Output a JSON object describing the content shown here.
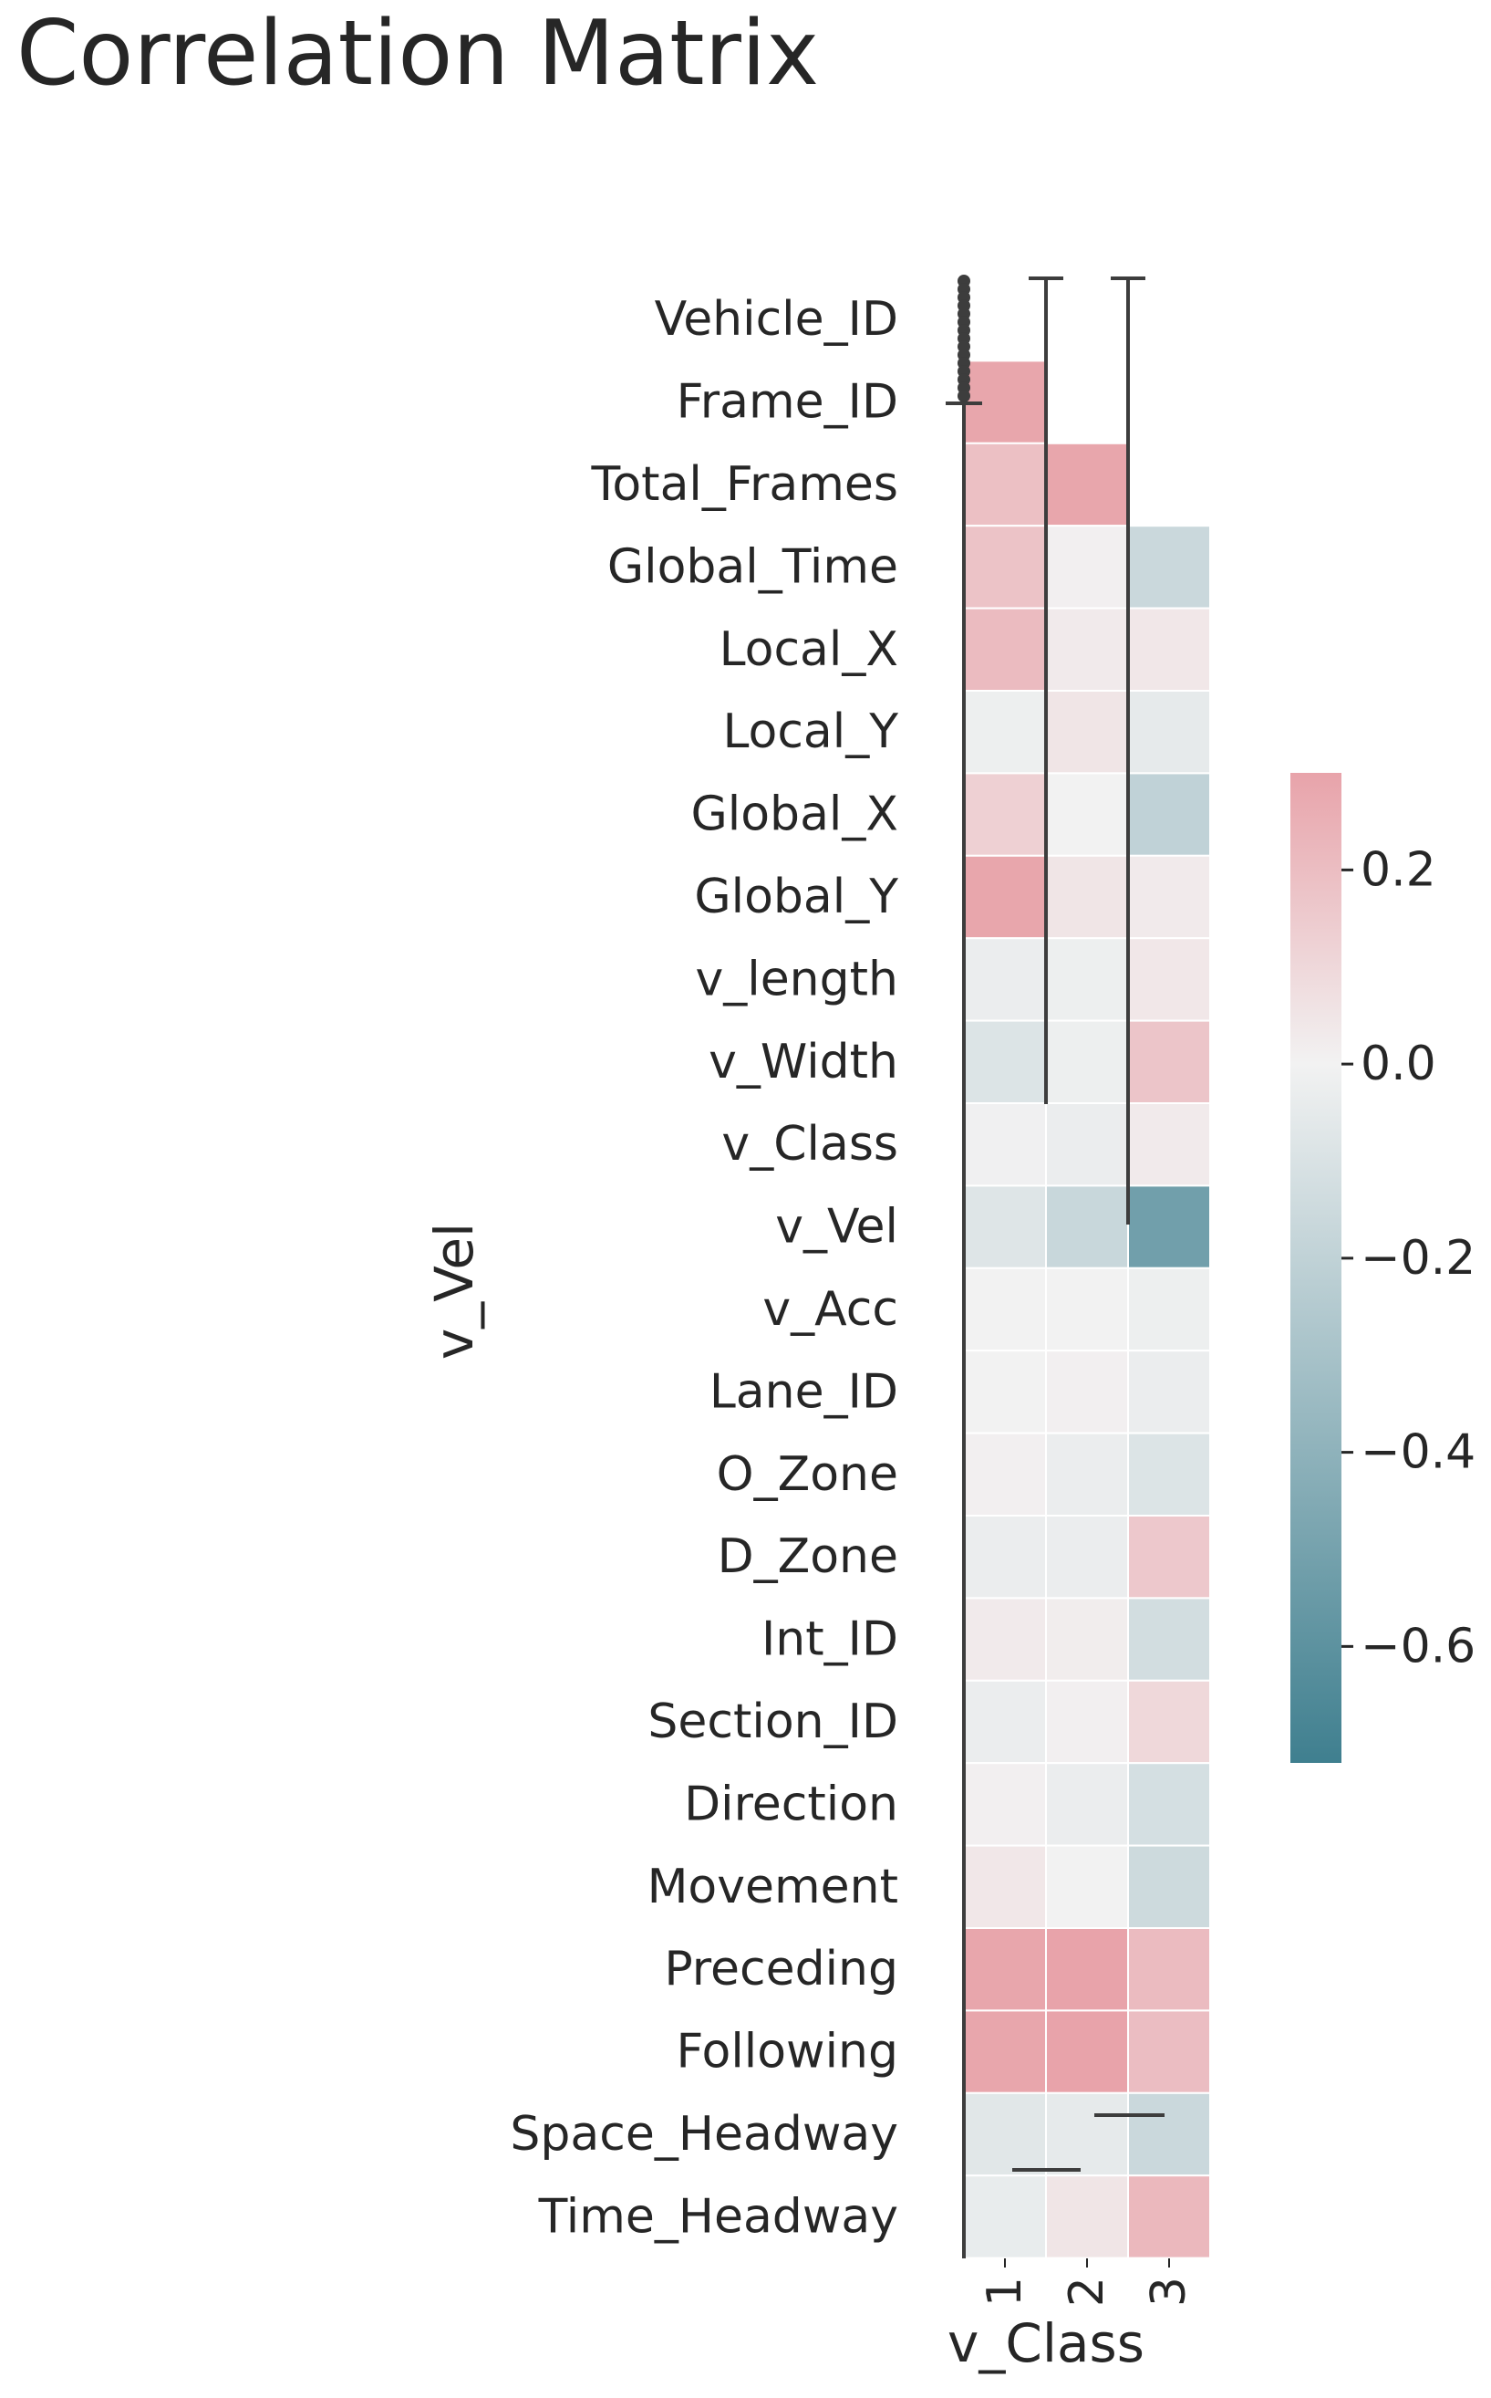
{
  "chart_data": {
    "type": "heatmap",
    "title": "Correlation Matrix",
    "xlabel": "v_Class",
    "ylabel": "v_Vel",
    "columns": [
      "1",
      "2",
      "3"
    ],
    "rows": [
      "Vehicle_ID",
      "Frame_ID",
      "Total_Frames",
      "Global_Time",
      "Local_X",
      "Local_Y",
      "Global_X",
      "Global_Y",
      "v_length",
      "v_Width",
      "v_Class",
      "v_Vel",
      "v_Acc",
      "Lane_ID",
      "O_Zone",
      "D_Zone",
      "Int_ID",
      "Section_ID",
      "Direction",
      "Movement",
      "Preceding",
      "Following",
      "Space_Headway",
      "Time_Headway"
    ],
    "values": [
      [
        null,
        null,
        null
      ],
      [
        0.29,
        null,
        null
      ],
      [
        0.19,
        0.29,
        null
      ],
      [
        0.18,
        0.01,
        -0.16
      ],
      [
        0.21,
        0.03,
        0.04
      ],
      [
        -0.02,
        0.05,
        -0.05
      ],
      [
        0.13,
        0.0,
        -0.2
      ],
      [
        0.29,
        0.05,
        0.03
      ],
      [
        -0.03,
        -0.02,
        0.04
      ],
      [
        -0.09,
        -0.02,
        0.17
      ],
      [
        -0.01,
        -0.03,
        0.03
      ],
      [
        -0.08,
        -0.17,
        -0.52
      ],
      [
        0.0,
        0.0,
        -0.02
      ],
      [
        0.0,
        0.01,
        -0.03
      ],
      [
        0.01,
        -0.03,
        -0.09
      ],
      [
        -0.03,
        -0.03,
        0.16
      ],
      [
        0.03,
        0.02,
        -0.13
      ],
      [
        -0.03,
        0.01,
        0.1
      ],
      [
        0.01,
        -0.03,
        -0.12
      ],
      [
        0.04,
        0.0,
        -0.15
      ],
      [
        0.29,
        0.3,
        0.21
      ],
      [
        0.29,
        0.3,
        0.2
      ],
      [
        -0.07,
        -0.05,
        -0.16
      ],
      [
        -0.04,
        0.05,
        0.22
      ]
    ],
    "vmin": -0.72,
    "vmax": 0.3,
    "colorbar_ticks": [
      "0.2",
      "0.0",
      "−0.2",
      "−0.4",
      "−0.6"
    ],
    "colorbar_tick_values": [
      0.2,
      0.0,
      -0.2,
      -0.4,
      -0.6
    ],
    "colormap": {
      "low": "#3f7f8f",
      "mid": "#f2f2f2",
      "high": "#e8a3aa"
    }
  }
}
